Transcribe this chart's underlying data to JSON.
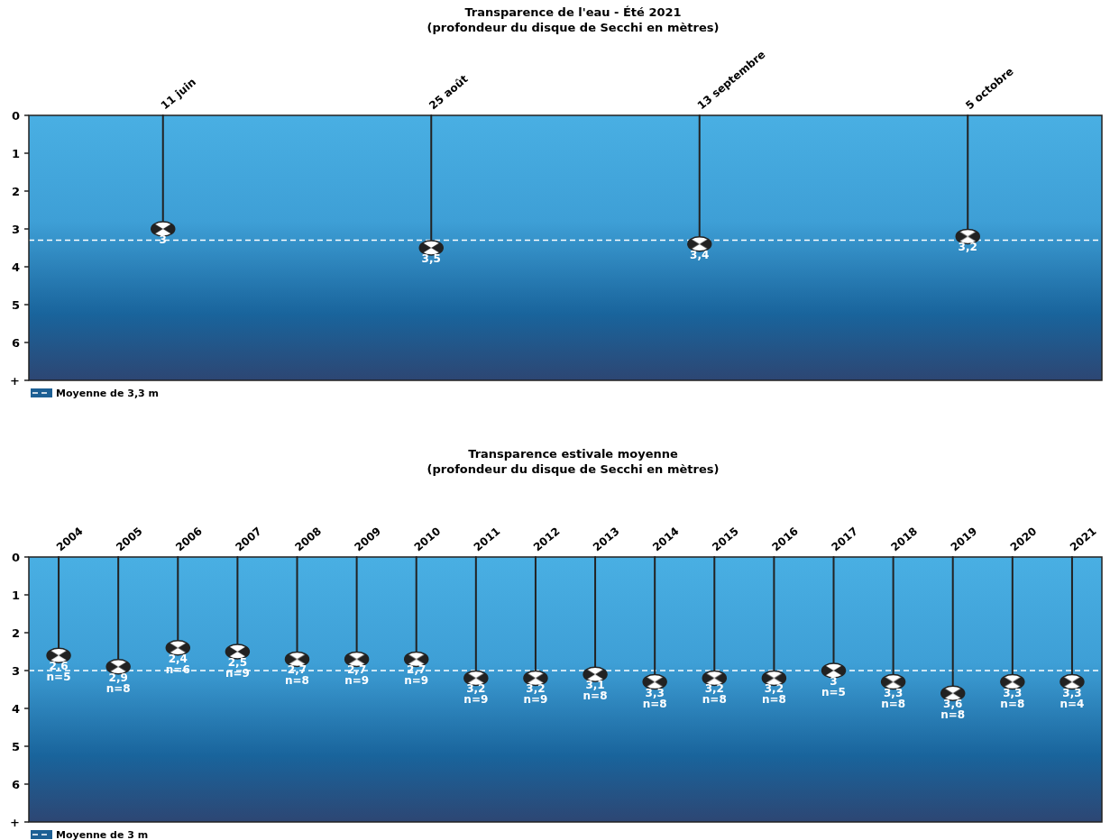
{
  "chart_data": [
    {
      "type": "lollipop",
      "title": "Transparence de l'eau - Été 2021",
      "subtitle": "(profondeur du disque de Secchi en mètres)",
      "categories": [
        "11 juin",
        "25 août",
        "13 septembre",
        "5 octobre"
      ],
      "series": [
        {
          "color": "#222222",
          "values": [
            3,
            3.5,
            3.4,
            3.2
          ],
          "value_labels": [
            "3",
            "3,5",
            "3,4",
            "3,2"
          ]
        }
      ],
      "ylim": [
        7,
        0
      ],
      "yticks": [
        0,
        1,
        2,
        3,
        4,
        5,
        6,
        {
          "value": 7,
          "label": "+"
        }
      ],
      "marker": "circle",
      "legend": "bottom left",
      "ref_lines": [
        {
          "axis": "y",
          "value": 3.3,
          "label": "Moyenne de 3,3 m",
          "color": "#ffffff",
          "line_style": "dashed"
        }
      ]
    },
    {
      "type": "lollipop",
      "title": "Transparence estivale moyenne",
      "subtitle": "(profondeur du disque de Secchi en mètres)",
      "categories": [
        "2004",
        "2005",
        "2006",
        "2007",
        "2008",
        "2009",
        "2010",
        "2011",
        "2012",
        "2013",
        "2014",
        "2015",
        "2016",
        "2017",
        "2018",
        "2019",
        "2020",
        "2021"
      ],
      "series": [
        {
          "color": "#222222",
          "values": [
            2.6,
            2.9,
            2.4,
            2.5,
            2.7,
            2.7,
            2.7,
            3.2,
            3.2,
            3.1,
            3.3,
            3.2,
            3.2,
            3,
            3.3,
            3.6,
            3.3,
            3.3
          ],
          "value_labels": [
            "2,6",
            "2,9",
            "2,4",
            "2,5",
            "2,7",
            "2,7",
            "2,7",
            "3,2",
            "3,2",
            "3,1",
            "3,3",
            "3,2",
            "3,2",
            "3",
            "3,3",
            "3,6",
            "3,3",
            "3,3"
          ]
        }
      ],
      "annotations": [
        {
          "text": "n=5",
          "x": "2004",
          "y": 2.6
        },
        {
          "text": "n=8",
          "x": "2005",
          "y": 2.9
        },
        {
          "text": "n=6",
          "x": "2006",
          "y": 2.4
        },
        {
          "text": "n=9",
          "x": "2007",
          "y": 2.5
        },
        {
          "text": "n=8",
          "x": "2008",
          "y": 2.7
        },
        {
          "text": "n=9",
          "x": "2009",
          "y": 2.7
        },
        {
          "text": "n=9",
          "x": "2010",
          "y": 2.7
        },
        {
          "text": "n=9",
          "x": "2011",
          "y": 3.2
        },
        {
          "text": "n=9",
          "x": "2012",
          "y": 3.2
        },
        {
          "text": "n=8",
          "x": "2013",
          "y": 3.1
        },
        {
          "text": "n=8",
          "x": "2014",
          "y": 3.3
        },
        {
          "text": "n=8",
          "x": "2015",
          "y": 3.2
        },
        {
          "text": "n=8",
          "x": "2016",
          "y": 3.2
        },
        {
          "text": "n=5",
          "x": "2017",
          "y": 3
        },
        {
          "text": "n=8",
          "x": "2018",
          "y": 3.3
        },
        {
          "text": "n=8",
          "x": "2019",
          "y": 3.6
        },
        {
          "text": "n=8",
          "x": "2020",
          "y": 3.3
        },
        {
          "text": "n=4",
          "x": "2021",
          "y": 3.3
        }
      ],
      "ylim": [
        7,
        0
      ],
      "yticks": [
        0,
        1,
        2,
        3,
        4,
        5,
        6,
        {
          "value": 7,
          "label": "+"
        }
      ],
      "marker": "circle",
      "legend": "bottom left",
      "ref_lines": [
        {
          "axis": "y",
          "value": 3,
          "label": "Moyenne de 3 m",
          "color": "#ffffff",
          "line_style": "dashed"
        }
      ]
    }
  ]
}
